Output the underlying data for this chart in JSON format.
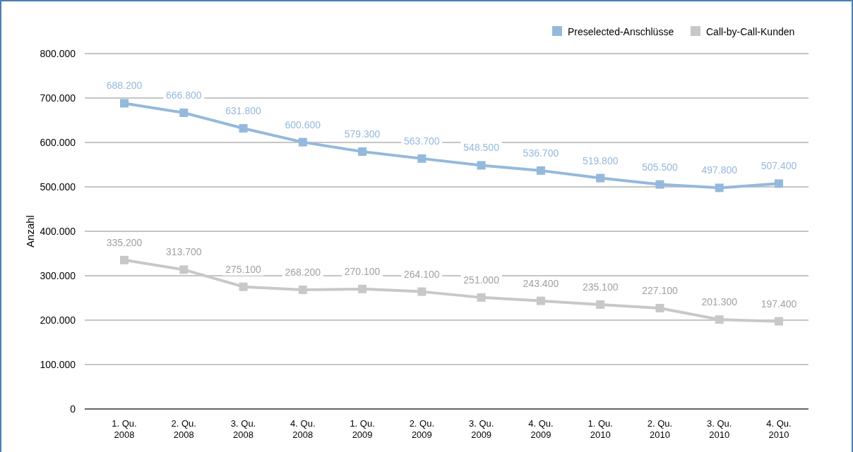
{
  "chart_data": {
    "type": "line",
    "ylabel": "Anzahl",
    "categories": [
      "1. Qu. 2008",
      "2. Qu. 2008",
      "3. Qu. 2008",
      "4. Qu. 2008",
      "1. Qu. 2009",
      "2. Qu. 2009",
      "3. Qu. 2009",
      "4. Qu. 2009",
      "1. Qu. 2010",
      "2. Qu. 2010",
      "3. Qu. 2010",
      "4. Qu. 2010"
    ],
    "series": [
      {
        "name": "Preselected-Anschlüsse",
        "color": "#95b9dd",
        "values": [
          688200,
          666800,
          631800,
          600600,
          579300,
          563700,
          548500,
          536700,
          519800,
          505500,
          497800,
          507400
        ],
        "value_labels": [
          "688.200",
          "666.800",
          "631.800",
          "600.600",
          "579.300",
          "563.700",
          "548.500",
          "536.700",
          "519.800",
          "505.500",
          "497.800",
          "507.400"
        ]
      },
      {
        "name": "Call-by-Call-Kunden",
        "color": "#c8c8c8",
        "values": [
          335200,
          313700,
          275100,
          268200,
          270100,
          264100,
          251000,
          243400,
          235100,
          227100,
          201300,
          197400
        ],
        "value_labels": [
          "335.200",
          "313.700",
          "275.100",
          "268.200",
          "270.100",
          "264.100",
          "251.000",
          "243.400",
          "235.100",
          "227.100",
          "201.300",
          "197.400"
        ]
      }
    ],
    "ylim": [
      0,
      800000
    ],
    "yticks": [
      {
        "value": 0,
        "label": "0"
      },
      {
        "value": 100000,
        "label": "100.000"
      },
      {
        "value": 200000,
        "label": "200.000"
      },
      {
        "value": 300000,
        "label": "300.000"
      },
      {
        "value": 400000,
        "label": "400.000"
      },
      {
        "value": 500000,
        "label": "500.000"
      },
      {
        "value": 600000,
        "label": "600.000"
      },
      {
        "value": 700000,
        "label": "700.000"
      },
      {
        "value": 800000,
        "label": "800.000"
      }
    ],
    "grid": "y",
    "legend": "top right",
    "marker": "square",
    "line_style": "solid"
  }
}
